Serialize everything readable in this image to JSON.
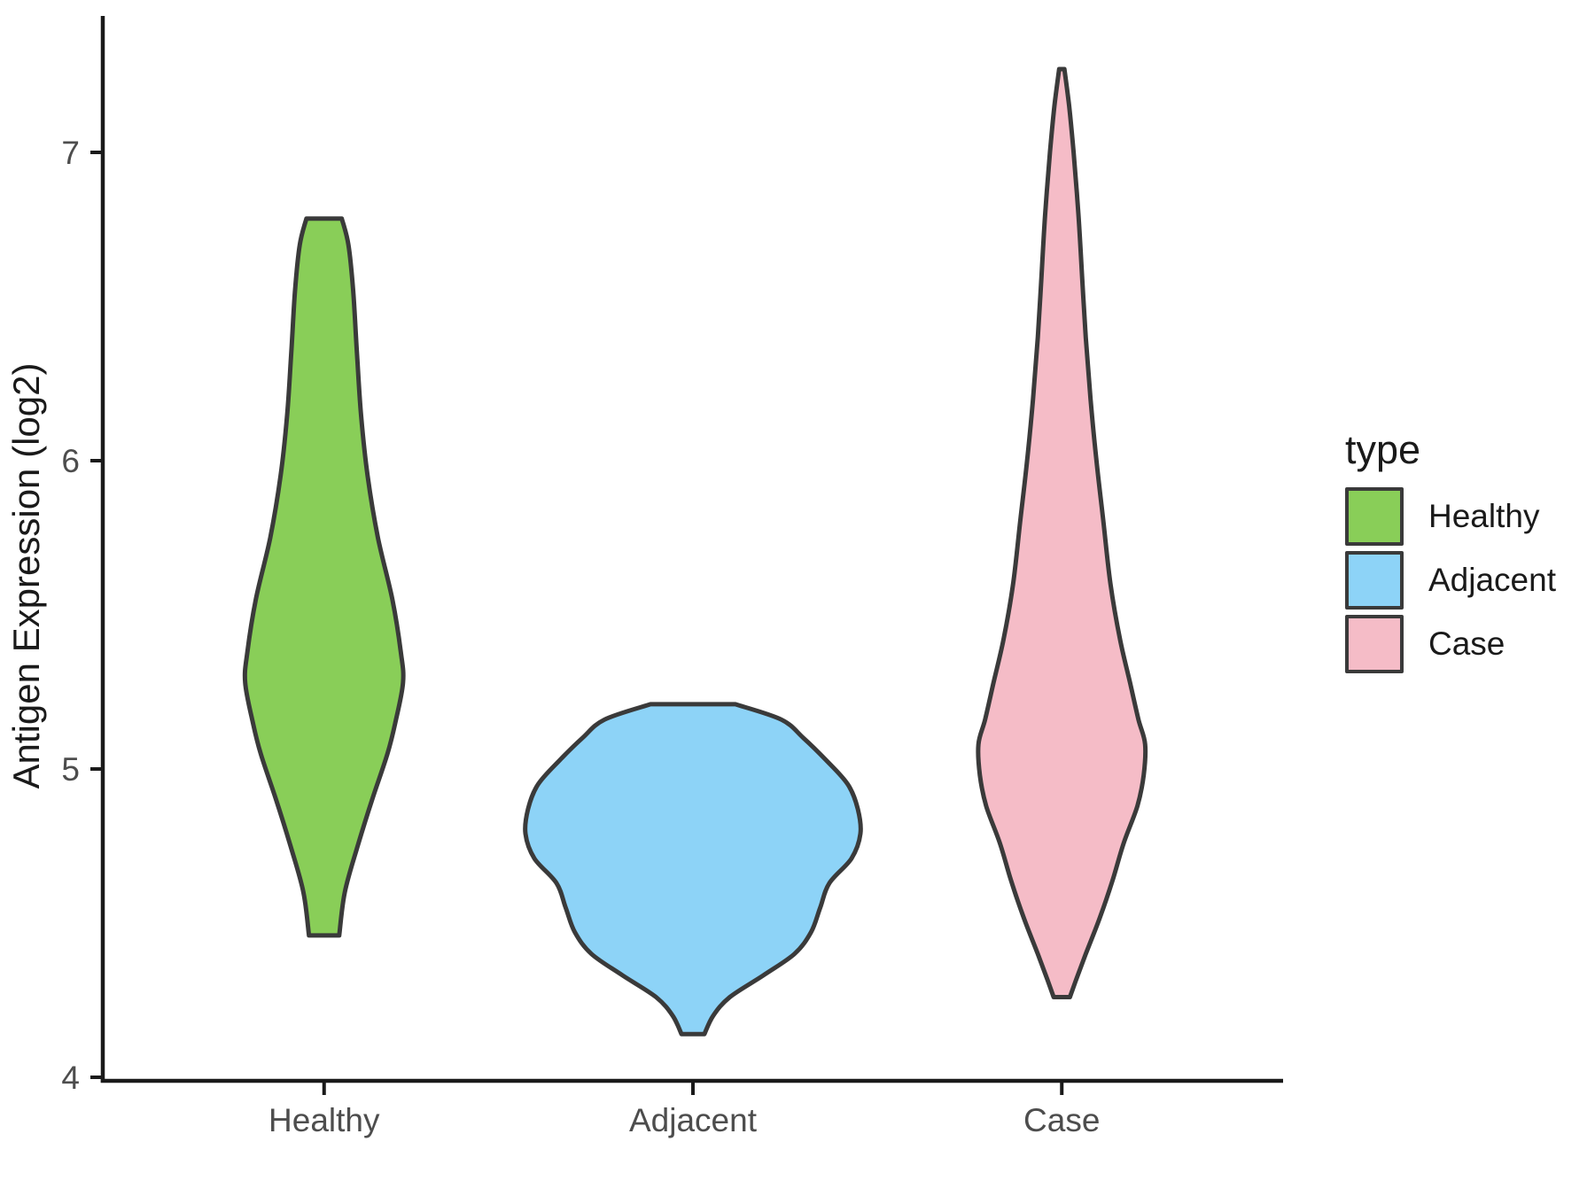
{
  "figure": {
    "background": "#FFFFFF",
    "axis_line_color": "#1a1a1a",
    "tick_text_color": "#4d4d4d"
  },
  "chart_data": {
    "type": "violin",
    "title": "",
    "xlabel": "",
    "ylabel": "Antigen Expression (log2)",
    "categories": [
      "Healthy",
      "Adjacent",
      "Case"
    ],
    "y_ticks": [
      4,
      5,
      6,
      7
    ],
    "ylim": [
      3.98,
      7.44
    ],
    "grid": "off",
    "outline_color": "#3a3a3a",
    "legend": {
      "title": "type",
      "position": "right",
      "entries": [
        {
          "label": "Healthy",
          "color": "#89CE58"
        },
        {
          "label": "Adjacent",
          "color": "#8DD3F7"
        },
        {
          "label": "Case",
          "color": "#F5BCC7"
        }
      ]
    },
    "series": [
      {
        "name": "Healthy",
        "x": 1,
        "fill": "#89CE58",
        "value_range": [
          4.46,
          6.78
        ],
        "widest_at": 5.3,
        "profile": [
          [
            6.785,
            0.048
          ],
          [
            6.7,
            0.066
          ],
          [
            6.55,
            0.079
          ],
          [
            6.35,
            0.089
          ],
          [
            6.15,
            0.1
          ],
          [
            5.95,
            0.118
          ],
          [
            5.75,
            0.146
          ],
          [
            5.55,
            0.185
          ],
          [
            5.38,
            0.208
          ],
          [
            5.28,
            0.214
          ],
          [
            5.15,
            0.193
          ],
          [
            5.05,
            0.172
          ],
          [
            4.9,
            0.13
          ],
          [
            4.75,
            0.091
          ],
          [
            4.6,
            0.056
          ],
          [
            4.46,
            0.041
          ]
        ]
      },
      {
        "name": "Adjacent",
        "x": 2,
        "fill": "#8DD3F7",
        "value_range": [
          4.14,
          5.21
        ],
        "widest_at": 4.79,
        "profile": [
          [
            5.21,
            0.115
          ],
          [
            5.16,
            0.24
          ],
          [
            5.1,
            0.3
          ],
          [
            5.03,
            0.36
          ],
          [
            4.95,
            0.42
          ],
          [
            4.87,
            0.447
          ],
          [
            4.79,
            0.454
          ],
          [
            4.71,
            0.43
          ],
          [
            4.63,
            0.37
          ],
          [
            4.55,
            0.345
          ],
          [
            4.47,
            0.32
          ],
          [
            4.4,
            0.275
          ],
          [
            4.33,
            0.19
          ],
          [
            4.26,
            0.1
          ],
          [
            4.2,
            0.055
          ],
          [
            4.14,
            0.031
          ]
        ]
      },
      {
        "name": "Case",
        "x": 3,
        "fill": "#F5BCC7",
        "value_range": [
          4.26,
          7.27
        ],
        "widest_at": 5.08,
        "profile": [
          [
            7.27,
            0.007
          ],
          [
            7.15,
            0.02
          ],
          [
            7.0,
            0.032
          ],
          [
            6.8,
            0.045
          ],
          [
            6.6,
            0.055
          ],
          [
            6.4,
            0.065
          ],
          [
            6.2,
            0.078
          ],
          [
            6.0,
            0.094
          ],
          [
            5.8,
            0.113
          ],
          [
            5.6,
            0.132
          ],
          [
            5.42,
            0.158
          ],
          [
            5.28,
            0.185
          ],
          [
            5.16,
            0.208
          ],
          [
            5.08,
            0.226
          ],
          [
            4.98,
            0.222
          ],
          [
            4.88,
            0.205
          ],
          [
            4.76,
            0.168
          ],
          [
            4.64,
            0.138
          ],
          [
            4.52,
            0.104
          ],
          [
            4.4,
            0.065
          ],
          [
            4.32,
            0.04
          ],
          [
            4.26,
            0.022
          ]
        ]
      }
    ]
  }
}
